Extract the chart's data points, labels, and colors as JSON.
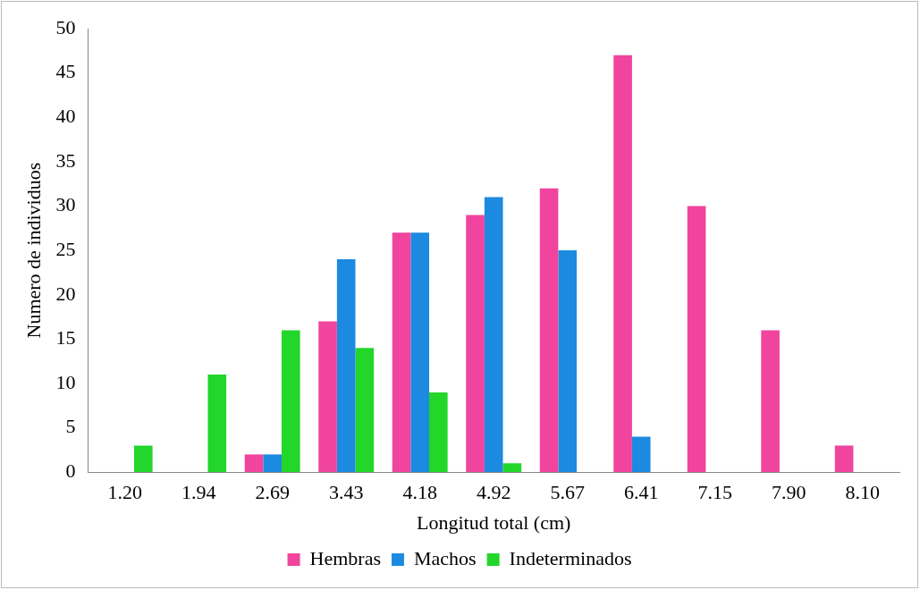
{
  "chart_data": {
    "type": "bar",
    "xlabel": "Longitud total (cm)",
    "ylabel": "Numero de individuos",
    "categories": [
      "1.20",
      "1.94",
      "2.69",
      "3.43",
      "4.18",
      "4.92",
      "5.67",
      "6.41",
      "7.15",
      "7.90",
      "8.10"
    ],
    "series": [
      {
        "name": "Hembras",
        "color": "#f0449e",
        "values": [
          0,
          0,
          2,
          17,
          27,
          29,
          32,
          47,
          30,
          16,
          3
        ]
      },
      {
        "name": "Machos",
        "color": "#1c8ae0",
        "values": [
          0,
          0,
          2,
          24,
          27,
          31,
          25,
          4,
          0,
          0,
          0
        ]
      },
      {
        "name": "Indeterminados",
        "color": "#22d62a",
        "values": [
          3,
          11,
          16,
          14,
          9,
          1,
          0,
          0,
          0,
          0,
          0
        ]
      }
    ],
    "ylim": [
      0,
      50
    ],
    "yticks": [
      0,
      5,
      10,
      15,
      20,
      25,
      30,
      35,
      40,
      45,
      50
    ],
    "grid": false,
    "legend": "bottom"
  }
}
